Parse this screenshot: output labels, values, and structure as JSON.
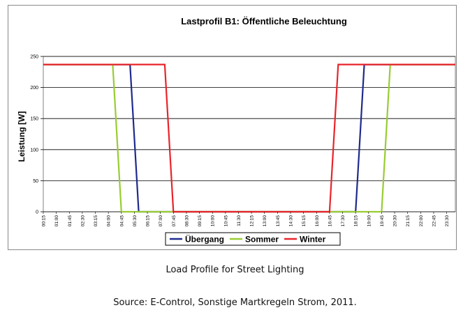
{
  "chart_data": {
    "type": "line",
    "title": "Lastprofil B1: Öffentliche Beleuchtung",
    "xlabel": "",
    "ylabel": "Leistung [W]",
    "ylim": [
      0,
      250
    ],
    "yticks": [
      0,
      50,
      100,
      150,
      200,
      250
    ],
    "grid": "horizontal",
    "legend": "bottom",
    "x_ticks": [
      "00:15",
      "01:00",
      "01:45",
      "02:30",
      "03:15",
      "04:00",
      "04:45",
      "05:30",
      "06:15",
      "07:00",
      "07:45",
      "08:30",
      "09:15",
      "10:00",
      "10:45",
      "11:30",
      "12:15",
      "13:00",
      "13:45",
      "14:30",
      "15:15",
      "16:00",
      "16:45",
      "17:30",
      "18:15",
      "19:00",
      "19:45",
      "20:30",
      "21:15",
      "22:00",
      "22:45",
      "23:30"
    ],
    "series": [
      {
        "name": "Übergang",
        "color": "#1f2a8c",
        "points": [
          [
            "00:15",
            237
          ],
          [
            "05:15",
            237
          ],
          [
            "05:45",
            0
          ],
          [
            "18:15",
            0
          ],
          [
            "18:45",
            237
          ],
          [
            "24:00",
            237
          ]
        ]
      },
      {
        "name": "Sommer",
        "color": "#99cc33",
        "points": [
          [
            "00:15",
            237
          ],
          [
            "04:15",
            237
          ],
          [
            "04:45",
            0
          ],
          [
            "19:45",
            0
          ],
          [
            "20:15",
            237
          ],
          [
            "24:00",
            237
          ]
        ]
      },
      {
        "name": "Winter",
        "color": "#e8242a",
        "points": [
          [
            "00:15",
            237
          ],
          [
            "07:15",
            237
          ],
          [
            "07:45",
            0
          ],
          [
            "16:45",
            0
          ],
          [
            "17:15",
            237
          ],
          [
            "24:00",
            237
          ]
        ]
      }
    ]
  },
  "captions": {
    "line1": "Load Profile for Street Lighting",
    "line2": "Source: E-Control, Sonstige Martkregeln Strom, 2011."
  }
}
